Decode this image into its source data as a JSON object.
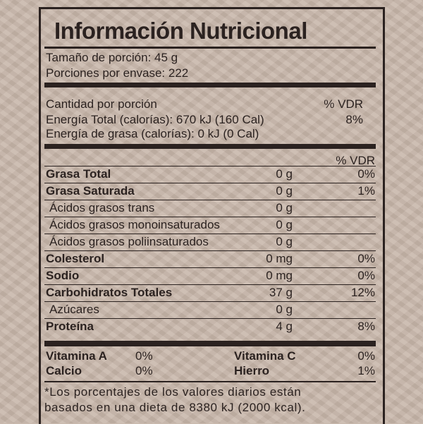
{
  "title": "Información Nutricional",
  "serving_size": "Tamaño de porción: 45 g",
  "servings_per_container": "Porciones por envase: 222",
  "amount_per_serving": "Cantidad por porción",
  "dv_header": "% VDR",
  "energy_total": {
    "label": "Energía Total (calorías): 670 kJ (160 Cal)",
    "dv": "8%"
  },
  "energy_fat": {
    "label": "Energía de grasa (calorías): 0 kJ (0 Cal)"
  },
  "dv_header2": "% VDR",
  "nutrients": [
    {
      "label": "Grasa Total",
      "amount": "0 g",
      "dv": "0%",
      "bold": true
    },
    {
      "label": "Grasa Saturada",
      "amount": "0 g",
      "dv": "1%",
      "bold": true
    },
    {
      "label": "Ácidos grasos trans",
      "amount": "0 g",
      "dv": ""
    },
    {
      "label": "Ácidos grasos monoinsaturados",
      "amount": "0 g",
      "dv": ""
    },
    {
      "label": "Ácidos grasos poliinsaturados",
      "amount": "0 g",
      "dv": ""
    },
    {
      "label": "Colesterol",
      "amount": "0 mg",
      "dv": "0%",
      "bold": true
    },
    {
      "label": "Sodio",
      "amount": "0 mg",
      "dv": "0%",
      "bold": true
    },
    {
      "label": "Carbohidratos Totales",
      "amount": "37 g",
      "dv": "12%",
      "bold": true
    },
    {
      "label": "Azúcares",
      "amount": "0 g",
      "dv": ""
    },
    {
      "label": "Proteína",
      "amount": "4 g",
      "dv": "8%",
      "bold": true
    }
  ],
  "vitamins": [
    {
      "label": "Vitamina A",
      "dv": "0%"
    },
    {
      "label": "Vitamina C",
      "dv": "0%"
    },
    {
      "label": "Calcio",
      "dv": "0%"
    },
    {
      "label": "Hierro",
      "dv": "1%"
    }
  ],
  "footnote": [
    "*Los porcentajes de los valores diarios están",
    "basados en una dieta de 8380 kJ (2000 kcal)."
  ]
}
